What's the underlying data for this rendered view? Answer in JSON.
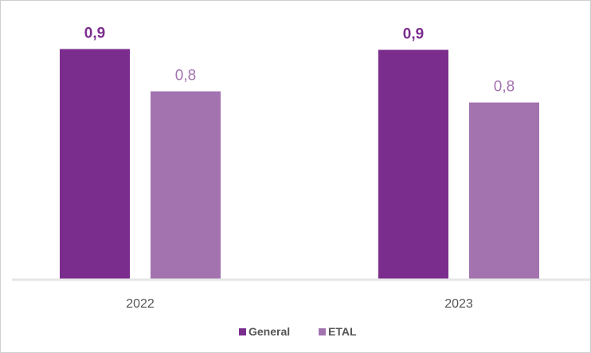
{
  "chart_data": {
    "type": "bar",
    "categories": [
      "2022",
      "2023"
    ],
    "series": [
      {
        "name": "General",
        "values": [
          0.9,
          0.9
        ],
        "labels": [
          "0,9",
          "0,9"
        ],
        "color": "#7b2d8e"
      },
      {
        "name": "ETAL",
        "values": [
          0.8,
          0.8
        ],
        "labels": [
          "0,8",
          "0,8"
        ],
        "color": "#a373b0"
      }
    ],
    "title": "",
    "xlabel": "",
    "ylabel": "",
    "ylim": [
      0,
      1.0
    ],
    "grid": false,
    "legend": "bottom-center",
    "axis_color": "#e6e6e6"
  }
}
